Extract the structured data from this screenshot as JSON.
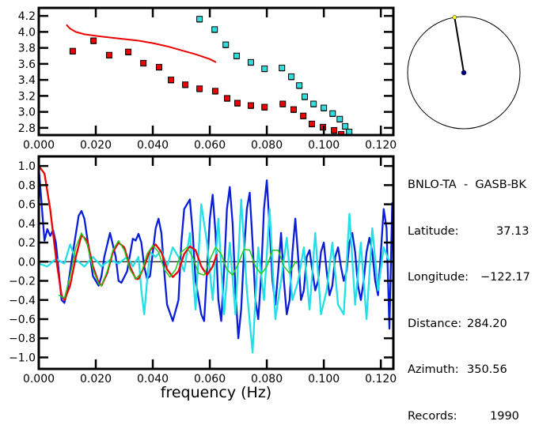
{
  "chart_data": [
    {
      "type": "scatter",
      "title": "",
      "xlabel": "",
      "ylabel": "",
      "xlim": [
        0.0,
        0.1244
      ],
      "ylim": [
        2.71,
        4.3
      ],
      "xticks": [
        "0.000",
        "0.020",
        "0.040",
        "0.060",
        "0.080",
        "0.100",
        "0.120"
      ],
      "xtick_values": [
        0.0,
        0.02,
        0.04,
        0.06,
        0.08,
        0.1,
        0.12
      ],
      "yticks": [
        "2.8",
        "3.0",
        "3.2",
        "3.4",
        "3.6",
        "3.8",
        "4.0",
        "4.2"
      ],
      "ytick_values": [
        2.8,
        3.0,
        3.2,
        3.4,
        3.6,
        3.8,
        4.0,
        4.2
      ],
      "grid": false,
      "series": [
        {
          "name": "red-measurements",
          "kind": "markers",
          "color": "#ee0000",
          "x": [
            0.0119,
            0.0192,
            0.0247,
            0.0314,
            0.0367,
            0.0422,
            0.0464,
            0.0514,
            0.0564,
            0.0619,
            0.0661,
            0.0697,
            0.0744,
            0.0792,
            0.0856,
            0.0894,
            0.0928,
            0.0958,
            0.0997,
            0.1036,
            0.1061
          ],
          "y": [
            3.76,
            3.89,
            3.71,
            3.75,
            3.61,
            3.56,
            3.4,
            3.34,
            3.29,
            3.26,
            3.17,
            3.11,
            3.08,
            3.06,
            3.1,
            3.03,
            2.95,
            2.85,
            2.81,
            2.77,
            2.72
          ]
        },
        {
          "name": "cyan-measurements",
          "kind": "markers",
          "color": "#33dddd",
          "x": [
            0.0564,
            0.0617,
            0.0656,
            0.0694,
            0.0744,
            0.0792,
            0.0853,
            0.0886,
            0.0914,
            0.0933,
            0.0964,
            0.1,
            0.1031,
            0.1056,
            0.1075,
            0.1089
          ],
          "y": [
            4.16,
            4.03,
            3.84,
            3.7,
            3.62,
            3.54,
            3.55,
            3.44,
            3.33,
            3.19,
            3.1,
            3.05,
            2.98,
            2.91,
            2.82,
            2.75
          ]
        },
        {
          "name": "red-model-curve",
          "kind": "line",
          "color": "#ee0000",
          "x": [
            0.0097,
            0.011,
            0.013,
            0.016,
            0.02,
            0.025,
            0.03,
            0.035,
            0.04,
            0.045,
            0.05,
            0.055,
            0.06,
            0.0622
          ],
          "y": [
            4.09,
            4.04,
            4.0,
            3.97,
            3.95,
            3.93,
            3.91,
            3.89,
            3.86,
            3.82,
            3.77,
            3.72,
            3.66,
            3.62
          ]
        }
      ]
    },
    {
      "type": "line",
      "title": "",
      "xlabel": "frequency (Hz)",
      "ylabel": "",
      "xlim": [
        0.0,
        0.1244
      ],
      "ylim": [
        -1.12,
        1.1
      ],
      "xticks": [
        "0.000",
        "0.020",
        "0.040",
        "0.060",
        "0.080",
        "0.100",
        "0.120"
      ],
      "xtick_values": [
        0.0,
        0.02,
        0.04,
        0.06,
        0.08,
        0.1,
        0.12
      ],
      "yticks": [
        "1.0",
        "0.8",
        "0.6",
        "0.4",
        "0.2",
        "0.0",
        "−0.2",
        "−0.4",
        "−0.6",
        "−0.8",
        "−1.0"
      ],
      "ytick_values": [
        1.0,
        0.8,
        0.6,
        0.4,
        0.2,
        0.0,
        -0.2,
        -0.4,
        -0.6,
        -0.8,
        -1.0
      ],
      "zero_line": true,
      "grid": false,
      "series": [
        {
          "name": "blue-observed",
          "color": "#0a1ed8",
          "x": [
            0.0,
            0.001,
            0.002,
            0.003,
            0.004,
            0.005,
            0.006,
            0.007,
            0.008,
            0.009,
            0.01,
            0.012,
            0.014,
            0.015,
            0.016,
            0.017,
            0.019,
            0.021,
            0.022,
            0.023,
            0.025,
            0.027,
            0.028,
            0.029,
            0.031,
            0.033,
            0.034,
            0.035,
            0.036,
            0.037,
            0.038,
            0.039,
            0.04,
            0.041,
            0.042,
            0.043,
            0.044,
            0.045,
            0.047,
            0.049,
            0.05,
            0.051,
            0.053,
            0.054,
            0.055,
            0.057,
            0.058,
            0.059,
            0.06,
            0.061,
            0.062,
            0.063,
            0.064,
            0.065,
            0.066,
            0.067,
            0.068,
            0.069,
            0.07,
            0.071,
            0.072,
            0.073,
            0.074,
            0.075,
            0.076,
            0.077,
            0.078,
            0.079,
            0.08,
            0.081,
            0.082,
            0.083,
            0.084,
            0.085,
            0.086,
            0.087,
            0.088,
            0.089,
            0.09,
            0.091,
            0.092,
            0.093,
            0.094,
            0.095,
            0.096,
            0.097,
            0.098,
            0.099,
            0.1,
            0.101,
            0.102,
            0.103,
            0.104,
            0.105,
            0.106,
            0.107,
            0.108,
            0.109,
            0.11,
            0.111,
            0.112,
            0.113,
            0.114,
            0.115,
            0.116,
            0.117,
            0.118,
            0.119,
            0.12,
            0.121,
            0.122,
            0.123,
            0.124
          ],
          "y": [
            0.98,
            0.6,
            0.22,
            0.34,
            0.27,
            0.33,
            0.2,
            -0.1,
            -0.4,
            -0.43,
            -0.3,
            0.1,
            0.48,
            0.53,
            0.45,
            0.25,
            -0.15,
            -0.25,
            -0.15,
            0.05,
            0.3,
            0.05,
            -0.2,
            -0.22,
            -0.1,
            0.24,
            0.22,
            0.29,
            0.2,
            -0.05,
            -0.18,
            -0.15,
            0.1,
            0.35,
            0.45,
            0.3,
            -0.1,
            -0.45,
            -0.62,
            -0.4,
            0.2,
            0.55,
            0.65,
            0.3,
            -0.2,
            -0.55,
            -0.62,
            -0.1,
            0.45,
            0.7,
            0.3,
            -0.4,
            -0.62,
            -0.1,
            0.55,
            0.78,
            0.4,
            -0.3,
            -0.8,
            -0.5,
            0.1,
            0.55,
            0.72,
            0.2,
            -0.4,
            -0.6,
            -0.15,
            0.55,
            0.85,
            0.35,
            -0.2,
            -0.45,
            -0.1,
            0.3,
            -0.2,
            -0.55,
            -0.4,
            0.1,
            0.45,
            0.05,
            -0.4,
            -0.3,
            0.05,
            0.12,
            -0.1,
            -0.3,
            -0.2,
            0.1,
            0.2,
            -0.1,
            -0.35,
            -0.25,
            0.05,
            0.15,
            -0.05,
            -0.2,
            -0.1,
            0.2,
            0.3,
            0.1,
            -0.25,
            -0.4,
            -0.2,
            0.1,
            0.25,
            0.1,
            -0.2,
            -0.35,
            0.1,
            0.55,
            0.35,
            -0.7,
            0.62
          ],
          "y_note": "approximate trace read from pixels"
        },
        {
          "name": "cyan-observed",
          "color": "#22e0e8",
          "x": [
            0.0,
            0.003,
            0.006,
            0.009,
            0.011,
            0.013,
            0.016,
            0.019,
            0.022,
            0.025,
            0.028,
            0.031,
            0.033,
            0.035,
            0.036,
            0.037,
            0.038,
            0.039,
            0.041,
            0.043,
            0.045,
            0.047,
            0.049,
            0.051,
            0.053,
            0.055,
            0.057,
            0.059,
            0.061,
            0.063,
            0.065,
            0.067,
            0.069,
            0.071,
            0.073,
            0.075,
            0.077,
            0.079,
            0.081,
            0.083,
            0.085,
            0.087,
            0.089,
            0.091,
            0.093,
            0.095,
            0.097,
            0.099,
            0.101,
            0.103,
            0.105,
            0.107,
            0.109,
            0.111,
            0.113,
            0.115,
            0.117,
            0.119,
            0.121,
            0.123,
            0.124
          ],
          "y": [
            -0.02,
            -0.05,
            0.03,
            -0.02,
            0.18,
            0.02,
            -0.05,
            0.05,
            -0.05,
            0.02,
            -0.02,
            0.05,
            -0.05,
            0.05,
            -0.3,
            -0.55,
            -0.2,
            0.1,
            0.05,
            0.12,
            -0.05,
            0.15,
            0.05,
            -0.1,
            0.3,
            -0.5,
            0.6,
            0.2,
            -0.4,
            0.45,
            -0.55,
            0.2,
            -0.55,
            0.65,
            -0.3,
            -0.95,
            0.15,
            -0.4,
            0.55,
            -0.6,
            -0.2,
            0.25,
            -0.4,
            -0.2,
            0.15,
            -0.5,
            0.3,
            -0.55,
            -0.3,
            0.2,
            -0.45,
            -0.55,
            0.5,
            -0.45,
            0.2,
            -0.6,
            0.35,
            -0.3,
            0.15,
            0.0,
            0.0
          ],
          "y_note": "approximate trace read from pixels"
        },
        {
          "name": "red-model",
          "color": "#ee0000",
          "x": [
            0.0,
            0.002,
            0.004,
            0.006,
            0.008,
            0.009,
            0.011,
            0.013,
            0.015,
            0.017,
            0.019,
            0.021,
            0.022,
            0.024,
            0.026,
            0.028,
            0.03,
            0.032,
            0.034,
            0.035,
            0.037,
            0.039,
            0.041,
            0.043,
            0.045,
            0.047,
            0.049,
            0.051,
            0.053,
            0.055,
            0.057,
            0.059,
            0.061,
            0.0625
          ],
          "y": [
            1.0,
            0.92,
            0.55,
            0.05,
            -0.35,
            -0.4,
            -0.25,
            0.05,
            0.28,
            0.22,
            -0.05,
            -0.22,
            -0.25,
            -0.12,
            0.1,
            0.2,
            0.15,
            -0.05,
            -0.18,
            -0.18,
            -0.05,
            0.12,
            0.18,
            0.1,
            -0.08,
            -0.16,
            -0.1,
            0.08,
            0.16,
            0.12,
            -0.05,
            -0.14,
            -0.05,
            0.08
          ]
        },
        {
          "name": "green-model",
          "color": "#22cc22",
          "x": [
            0.007,
            0.009,
            0.011,
            0.013,
            0.015,
            0.017,
            0.019,
            0.021,
            0.022,
            0.024,
            0.026,
            0.028,
            0.03,
            0.032,
            0.034,
            0.036,
            0.038,
            0.04,
            0.042,
            0.044,
            0.046,
            0.048,
            0.05,
            0.052,
            0.054,
            0.056,
            0.058,
            0.06,
            0.062,
            0.064,
            0.066,
            0.068,
            0.07,
            0.072,
            0.074,
            0.076,
            0.078,
            0.08,
            0.082,
            0.084,
            0.086,
            0.088,
            0.09,
            0.0905
          ],
          "y": [
            -0.35,
            -0.38,
            -0.15,
            0.15,
            0.3,
            0.18,
            -0.08,
            -0.23,
            -0.25,
            -0.1,
            0.12,
            0.22,
            0.12,
            -0.08,
            -0.18,
            -0.12,
            0.08,
            0.17,
            0.1,
            -0.08,
            -0.16,
            -0.08,
            0.1,
            0.15,
            0.05,
            -0.12,
            -0.14,
            0.02,
            0.15,
            0.08,
            -0.08,
            -0.14,
            -0.02,
            0.13,
            0.12,
            -0.05,
            -0.13,
            -0.05,
            0.12,
            0.12,
            -0.05,
            -0.12,
            0.0,
            -0.02
          ]
        }
      ]
    }
  ],
  "map": {
    "description": "station azimuth circle",
    "azimuth_deg": 350.56,
    "center_color": "#000080",
    "endpoint_color": "#ffff00"
  },
  "info": {
    "station_pair": "BNLO-TA  -  GASB-BK",
    "rows": [
      {
        "label": "Latitude:",
        "value": "37.13"
      },
      {
        "label": "Longitude:",
        "value": "−122.17"
      },
      {
        "label": "Distance:",
        "value": "284.20"
      },
      {
        "label": "Azimuth:",
        "value": "350.56"
      },
      {
        "label": "Records:",
        "value": "1990"
      }
    ]
  }
}
